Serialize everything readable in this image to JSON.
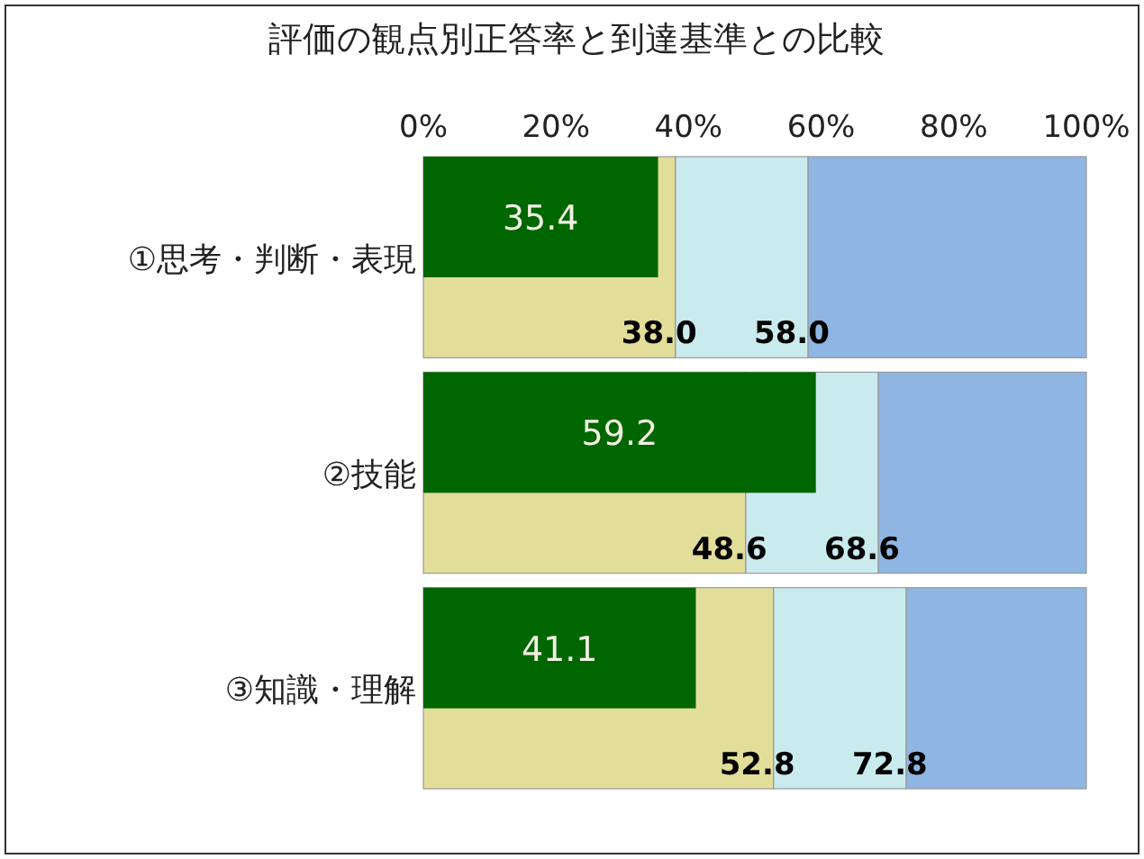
{
  "chart_data": {
    "type": "bar",
    "orientation": "horizontal",
    "title": "評価の観点別正答率と到達基準との比較",
    "categories": [
      "①思考・判断・表現",
      "②技能",
      "③知識・理解"
    ],
    "xlim": [
      0,
      100
    ],
    "xticks": [
      {
        "value": 0,
        "label": "0%"
      },
      {
        "value": 20,
        "label": "20%"
      },
      {
        "value": 40,
        "label": "40%"
      },
      {
        "value": 60,
        "label": "60%"
      },
      {
        "value": 80,
        "label": "80%"
      },
      {
        "value": 100,
        "label": "100%"
      }
    ],
    "series": [
      {
        "color": "#006600",
        "base": [
          0,
          0,
          0
        ],
        "values": [
          35.4,
          59.2,
          41.1
        ],
        "value_labels": [
          "35.4",
          "59.2",
          "41.1"
        ]
      },
      {
        "color": "#e3dd9a",
        "base": [
          0,
          0,
          0
        ],
        "values": [
          38.0,
          48.6,
          52.8
        ],
        "value_labels": [
          "38.0",
          "48.6",
          "52.8"
        ]
      },
      {
        "color": "#c9ebee",
        "base": [
          38.0,
          48.6,
          52.8
        ],
        "values": [
          20.0,
          20.0,
          20.0
        ],
        "value_labels": [
          "58.0",
          "68.6",
          "72.8"
        ]
      },
      {
        "color": "#8fb6e2",
        "base": [
          58.0,
          68.6,
          72.8
        ],
        "values": [
          42.0,
          31.4,
          27.2
        ]
      }
    ]
  }
}
